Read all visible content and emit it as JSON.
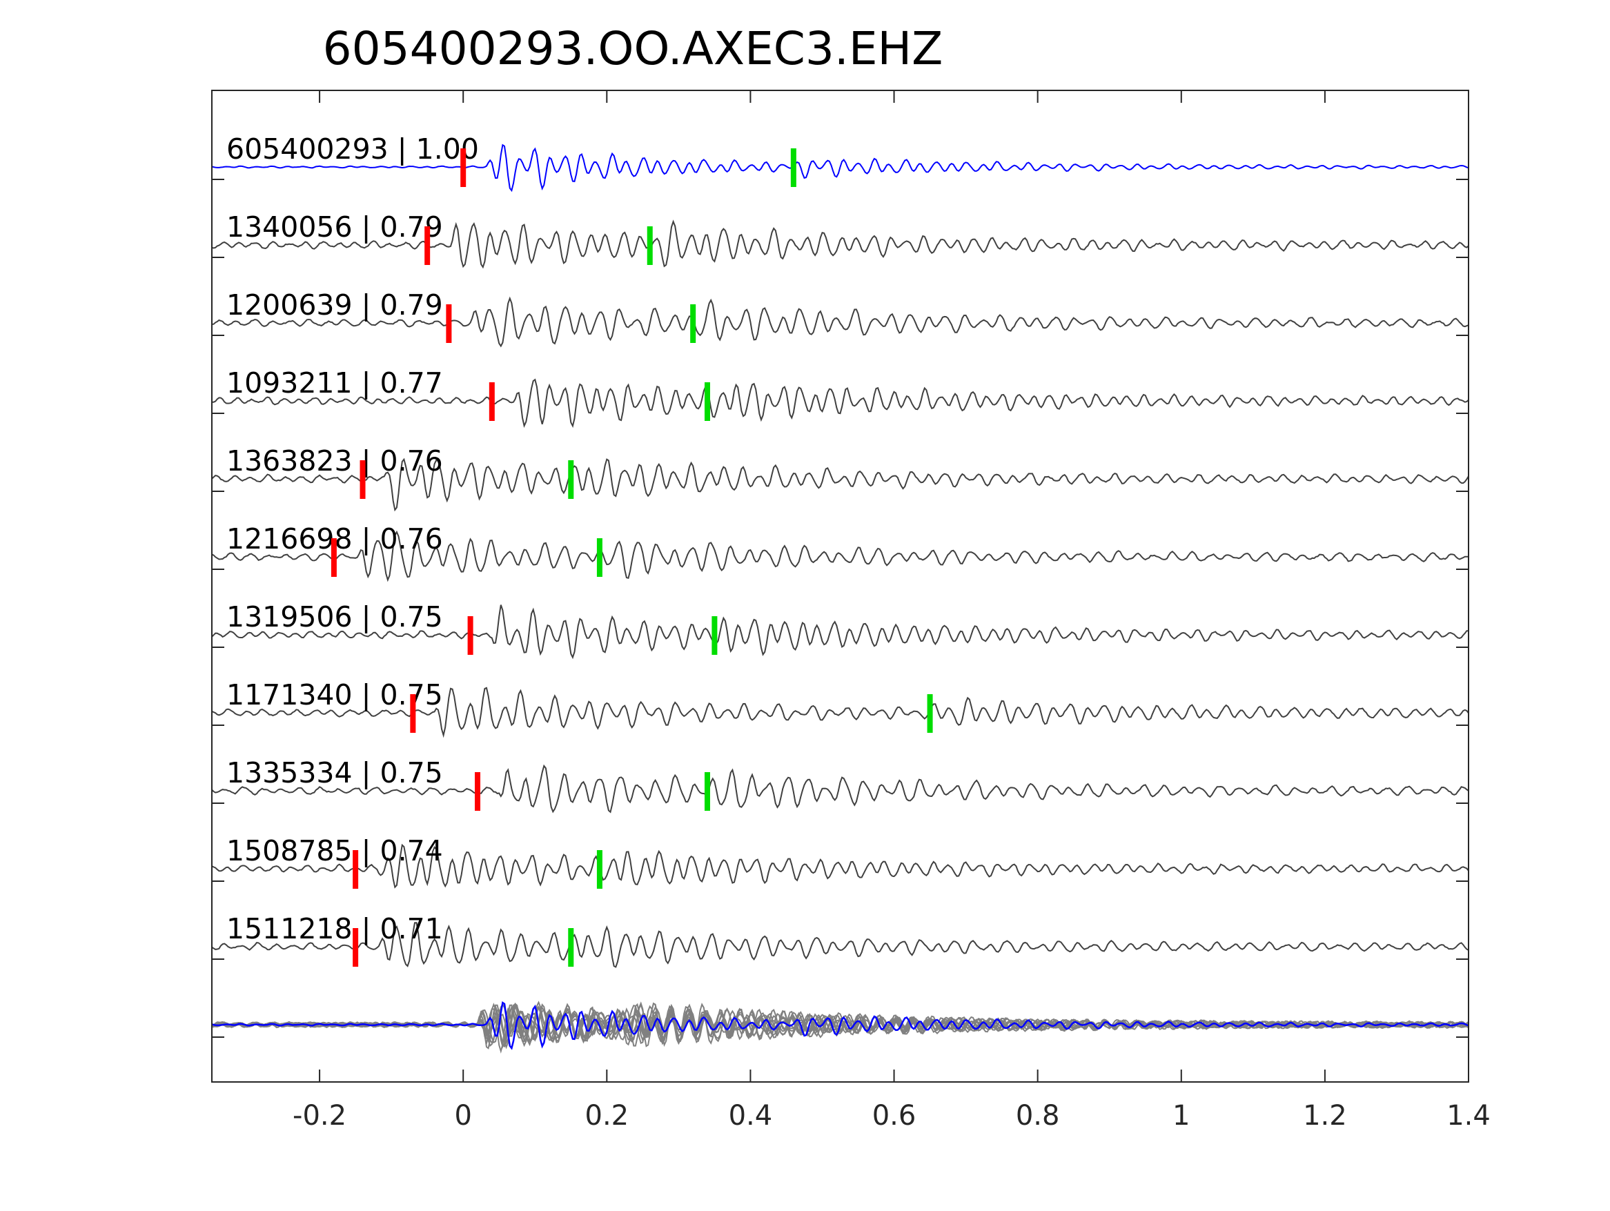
{
  "chart_data": {
    "type": "line",
    "title": "605400293.OO.AXEC3.EHZ",
    "xlabel": "",
    "ylabel": "",
    "xlim": [
      -0.35,
      1.4
    ],
    "x_ticks": [
      -0.2,
      0,
      0.2,
      0.4,
      0.6,
      0.8,
      1,
      1.2,
      1.4
    ],
    "x_tick_labels": [
      "-0.2",
      "0",
      "0.2",
      "0.4",
      "0.6",
      "0.8",
      "1",
      "1.2",
      "1.4"
    ],
    "grid": false,
    "legend": "none",
    "colors": {
      "template": "#0000ff",
      "match": "#404040",
      "stack": "#808080",
      "p_pick": "#ff0000",
      "s_pick": "#00dd00",
      "axes": "#262626"
    },
    "traces": [
      {
        "label": "605400293 | 1.00",
        "event_id": "605400293",
        "cc": 1.0,
        "p_pick": 0.0,
        "s_pick": 0.46,
        "color": "template"
      },
      {
        "label": "1340056 | 0.79",
        "event_id": "1340056",
        "cc": 0.79,
        "p_pick": -0.05,
        "s_pick": 0.26,
        "color": "match"
      },
      {
        "label": "1200639 | 0.79",
        "event_id": "1200639",
        "cc": 0.79,
        "p_pick": -0.02,
        "s_pick": 0.32,
        "color": "match"
      },
      {
        "label": "1093211 | 0.77",
        "event_id": "1093211",
        "cc": 0.77,
        "p_pick": 0.04,
        "s_pick": 0.34,
        "color": "match"
      },
      {
        "label": "1363823 | 0.76",
        "event_id": "1363823",
        "cc": 0.76,
        "p_pick": -0.14,
        "s_pick": 0.15,
        "color": "match"
      },
      {
        "label": "1216698 | 0.76",
        "event_id": "1216698",
        "cc": 0.76,
        "p_pick": -0.18,
        "s_pick": 0.19,
        "color": "match"
      },
      {
        "label": "1319506 | 0.75",
        "event_id": "1319506",
        "cc": 0.75,
        "p_pick": 0.01,
        "s_pick": 0.35,
        "color": "match"
      },
      {
        "label": "1171340 | 0.75",
        "event_id": "1171340",
        "cc": 0.75,
        "p_pick": -0.07,
        "s_pick": 0.65,
        "color": "match"
      },
      {
        "label": "1335334 | 0.75",
        "event_id": "1335334",
        "cc": 0.75,
        "p_pick": 0.02,
        "s_pick": 0.34,
        "color": "match"
      },
      {
        "label": "1508785 | 0.74",
        "event_id": "1508785",
        "cc": 0.74,
        "p_pick": -0.15,
        "s_pick": 0.19,
        "color": "match"
      },
      {
        "label": "1511218 | 0.71",
        "event_id": "1511218",
        "cc": 0.71,
        "p_pick": -0.15,
        "s_pick": 0.15,
        "color": "match"
      }
    ],
    "stack": {
      "label": "",
      "description_of_series": "overlay of all aligned waveforms",
      "color": "stack",
      "template_color": "template"
    }
  }
}
